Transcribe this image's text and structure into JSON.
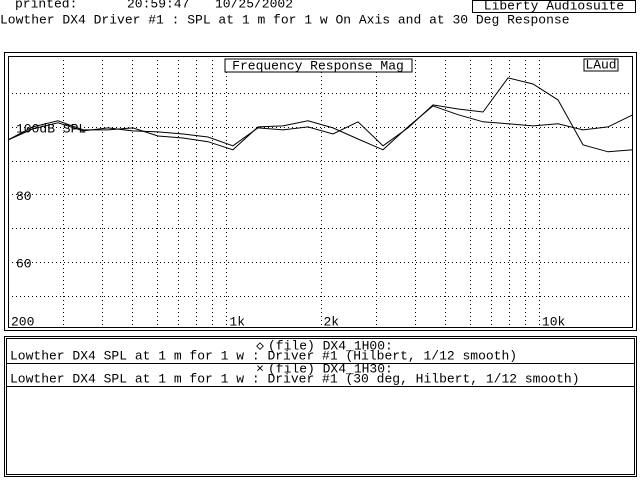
{
  "header": {
    "printed": "printed:",
    "time": "20:59:47",
    "date": "10/25/2002",
    "app": "Liberty Audiosuite",
    "title": "Lowther DX4 Driver #1 : SPL at 1 m for 1 w On Axis and at 30 Deg Response"
  },
  "chart_data": {
    "type": "line",
    "title": "Frequency Response Mag",
    "badge": "LAud",
    "log_x": true,
    "xlim": [
      200,
      20000
    ],
    "xticks": [
      200,
      {
        "value": 1000,
        "label": "1k"
      },
      {
        "value": 2000,
        "label": "2k"
      },
      {
        "value": 10000,
        "label": "10k"
      }
    ],
    "x_grid": [
      300,
      400,
      500,
      600,
      700,
      800,
      900,
      1000,
      2000,
      3000,
      4000,
      5000,
      6000,
      7000,
      8000,
      9000,
      10000
    ],
    "ylim": [
      40.4,
      121
    ],
    "yticks": [
      {
        "value": 100,
        "label": "100dB SPL"
      },
      80,
      60
    ],
    "y_grid": [
      110,
      100,
      90,
      80,
      70,
      60,
      50
    ],
    "x": [
      200,
      240,
      289,
      348,
      418,
      502,
      604,
      726,
      873,
      1049,
      1262,
      1517,
      1824,
      2193,
      2637,
      3170,
      3811,
      4582,
      5509,
      6624,
      7964,
      9575,
      11512,
      13841,
      16641,
      20000
    ],
    "series": [
      {
        "name": "(file) DX4_1H00:",
        "marker": "◇",
        "description": "Lowther DX4 SPL at 1 m for 1 w : Driver #1 (Hilbert, 1/12 smooth)",
        "color": "#000000",
        "values": [
          96.1,
          99.4,
          101.2,
          98.8,
          99.7,
          98.8,
          98.5,
          97.9,
          97.0,
          94.4,
          99.7,
          99.1,
          100.0,
          97.9,
          101.5,
          94.4,
          99.7,
          106.5,
          105.3,
          104.4,
          114.5,
          112.7,
          108.0,
          94.7,
          92.6,
          93.2
        ]
      },
      {
        "name": "(file) DX4_1H30:",
        "marker": "×",
        "description": "Lowther DX4 SPL at 1 m for 1 w : Driver #1 (30 deg, Hilbert, 1/12 smooth)",
        "color": "#000000",
        "values": [
          96.1,
          100.0,
          101.8,
          99.1,
          99.1,
          99.7,
          97.3,
          96.7,
          95.6,
          93.2,
          100.0,
          100.3,
          101.8,
          99.7,
          96.4,
          93.2,
          100.0,
          106.2,
          103.6,
          101.5,
          100.9,
          100.3,
          100.9,
          99.1,
          100.0,
          103.6
        ]
      }
    ]
  }
}
